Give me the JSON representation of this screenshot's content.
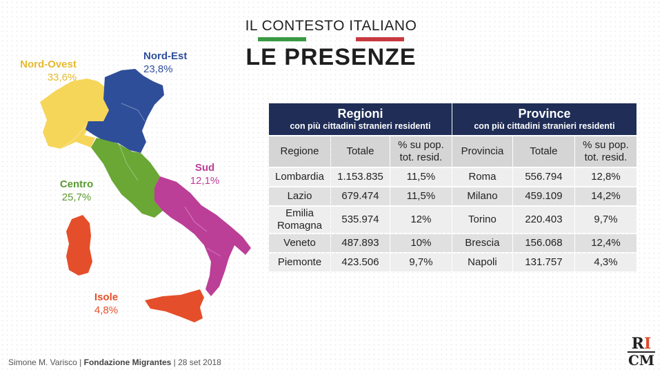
{
  "header": {
    "subtitle": "IL CONTESTO ITALIANO",
    "title": "LE PRESENZE"
  },
  "colors": {
    "flag_green": "#3a9a44",
    "flag_red": "#c8393f",
    "nord_ovest": "#f6d658",
    "nord_est": "#2f4e99",
    "centro": "#6aa735",
    "sud": "#bb3e97",
    "isole": "#e54e2a",
    "table_header": "#1f2d57"
  },
  "map": {
    "nord_ovest": {
      "name": "Nord-Ovest",
      "pct": "33,6%"
    },
    "nord_est": {
      "name": "Nord-Est",
      "pct": "23,8%"
    },
    "centro": {
      "name": "Centro",
      "pct": "25,7%"
    },
    "sud": {
      "name": "Sud",
      "pct": "12,1%"
    },
    "isole": {
      "name": "Isole",
      "pct": "4,8%"
    }
  },
  "table": {
    "left_title": "Regioni",
    "left_subtitle": "con più cittadini stranieri residenti",
    "right_title": "Province",
    "right_subtitle": "con più cittadini stranieri residenti",
    "columns": {
      "regione": "Regione",
      "totale": "Totale",
      "pct": "% su pop. tot. resid.",
      "provincia": "Provincia"
    },
    "rows": [
      {
        "regione": "Lombardia",
        "r_tot": "1.153.835",
        "r_pct": "11,5%",
        "provincia": "Roma",
        "p_tot": "556.794",
        "p_pct": "12,8%"
      },
      {
        "regione": "Lazio",
        "r_tot": "679.474",
        "r_pct": "11,5%",
        "provincia": "Milano",
        "p_tot": "459.109",
        "p_pct": "14,2%"
      },
      {
        "regione": "Emilia Romagna",
        "r_tot": "535.974",
        "r_pct": "12%",
        "provincia": "Torino",
        "p_tot": "220.403",
        "p_pct": "9,7%"
      },
      {
        "regione": "Veneto",
        "r_tot": "487.893",
        "r_pct": "10%",
        "provincia": "Brescia",
        "p_tot": "156.068",
        "p_pct": "12,4%"
      },
      {
        "regione": "Piemonte",
        "r_tot": "423.506",
        "r_pct": "9,7%",
        "provincia": "Napoli",
        "p_tot": "131.757",
        "p_pct": "4,3%"
      }
    ]
  },
  "footer": {
    "author": "Simone M. Varisco",
    "sep": "|",
    "org": "Fondazione Migrantes",
    "date": "28 set 2018"
  },
  "logo": {
    "line1_a": "R",
    "line1_b": "I",
    "line2": "CM"
  }
}
